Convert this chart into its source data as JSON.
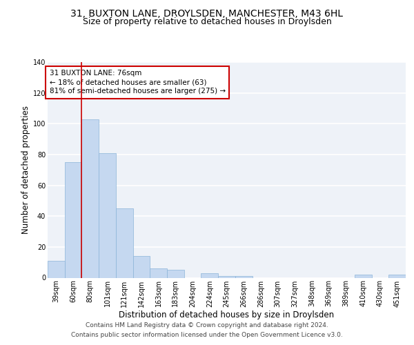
{
  "title_line1": "31, BUXTON LANE, DROYLSDEN, MANCHESTER, M43 6HL",
  "title_line2": "Size of property relative to detached houses in Droylsden",
  "xlabel": "Distribution of detached houses by size in Droylsden",
  "ylabel": "Number of detached properties",
  "footer_line1": "Contains HM Land Registry data © Crown copyright and database right 2024.",
  "footer_line2": "Contains public sector information licensed under the Open Government Licence v3.0.",
  "categories": [
    "39sqm",
    "60sqm",
    "80sqm",
    "101sqm",
    "121sqm",
    "142sqm",
    "163sqm",
    "183sqm",
    "204sqm",
    "224sqm",
    "245sqm",
    "266sqm",
    "286sqm",
    "307sqm",
    "327sqm",
    "348sqm",
    "369sqm",
    "389sqm",
    "410sqm",
    "430sqm",
    "451sqm"
  ],
  "values": [
    11,
    75,
    103,
    81,
    45,
    14,
    6,
    5,
    0,
    3,
    1,
    1,
    0,
    0,
    0,
    0,
    0,
    0,
    2,
    0,
    2
  ],
  "bar_color": "#c5d8f0",
  "bar_edgecolor": "#8ab4d8",
  "annotation_text": "31 BUXTON LANE: 76sqm\n← 18% of detached houses are smaller (63)\n81% of semi-detached houses are larger (275) →",
  "annotation_box_color": "#ffffff",
  "annotation_box_edgecolor": "#cc0000",
  "vline_color": "#cc0000",
  "vline_x": 1.5,
  "ylim": [
    0,
    140
  ],
  "background_color": "#eef2f8",
  "grid_color": "#ffffff",
  "fig_background": "#ffffff",
  "title_fontsize": 10,
  "subtitle_fontsize": 9,
  "axis_label_fontsize": 8.5,
  "tick_fontsize": 7,
  "footer_fontsize": 6.5,
  "annot_fontsize": 7.5
}
